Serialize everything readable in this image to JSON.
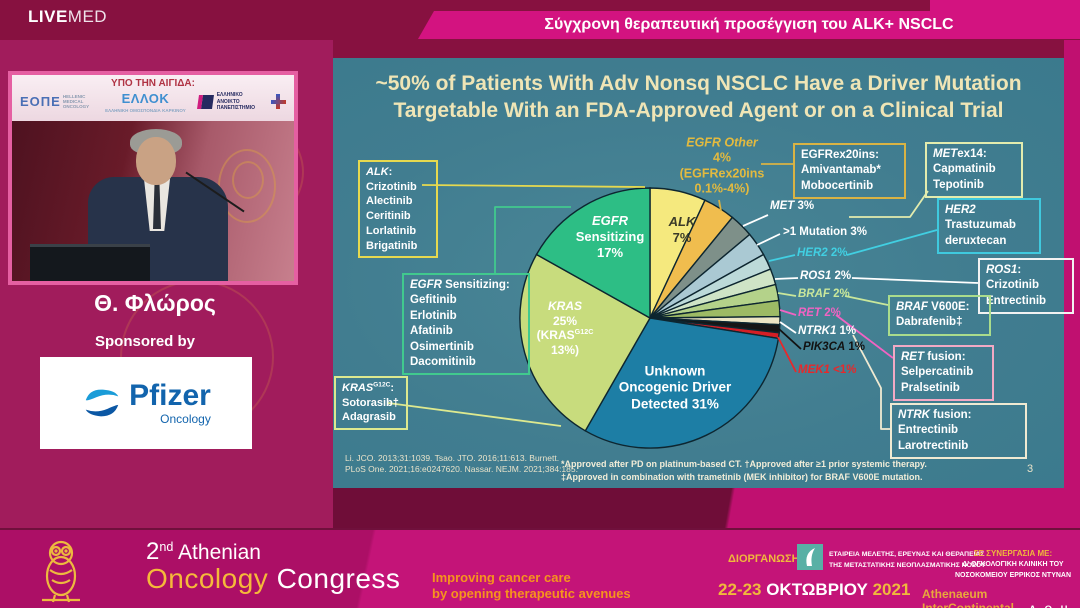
{
  "header": {
    "brand_bold": "LIVE",
    "brand_light": "MED",
    "session_title": "Σύγχρονη θεραπευτική προσέγγιση του ALK+ NSCLC"
  },
  "video": {
    "banner": "ΥΠΟ ΤΗΝ ΑΙΓΙΔΑ:",
    "org1": "ΕΟΠΕ",
    "org1_sub1": "HELLENIC",
    "org1_sub2": "MEDICAL",
    "org1_sub3": "ONCOLOGY",
    "org2": "ΕΛΛΟΚ",
    "org2_sub1": "ΕΛΛΗΝΙΚΗ",
    "org2_sub2": "ΟΜΟΣΠΟΝΔΙΑ",
    "org2_sub3": "ΚΑΡΚΙΝΟΥ",
    "org3_line1": "ΕΛΛΗΝΙΚΟ",
    "org3_line2": "ΑΝΟΙΚΤΟ",
    "org3_line3": "ΠΑΝΕΠΙΣΤΗΜΙΟ"
  },
  "speaker": {
    "name": "Θ. Φλώρος",
    "sponsored": "Sponsored by",
    "sponsor": "Pfizer",
    "sponsor_division": "Oncology"
  },
  "slide": {
    "title_line1": "~50% of Patients With Adv Nonsq NSCLC Have a Driver Mutation",
    "title_line2": "Targetable With an FDA-Approved Agent or on a Clinical Trial",
    "citations_line1": "Li. JCO. 2013;31:1039. Tsao. JTO. 2016;11:613. Burnett.",
    "citations_line2": "PLoS One. 2021;16:e0247620. Nassar. NEJM. 2021;384:185.",
    "footnote_line1": "*Approved after PD on platinum-based CT. †Approved after ≥1 prior systemic therapy.",
    "footnote_line2": "‡Approved in combination with trametinib (MEK inhibitor) for BRAF V600E mutation.",
    "page_number": "3",
    "boxes": [
      {
        "id": "alk",
        "gene": "ALK",
        "sup": "",
        "rest": ":",
        "drugs": [
          "Crizotinib",
          "Alectinib",
          "Ceritinib",
          "Lorlatinib",
          "Brigatinib"
        ],
        "border": "#e6d94f"
      },
      {
        "id": "egfr_sens",
        "gene": "EGFR",
        "sup": "",
        "rest": " Sensitizing:",
        "drugs": [
          "Gefitinib",
          "Erlotinib",
          "Afatinib",
          "Osimertinib",
          "Dacomitinib"
        ],
        "border": "#41c98e"
      },
      {
        "id": "kras",
        "gene": "KRAS",
        "sup": "G12C",
        "rest": ":",
        "drugs": [
          "Sotorasib†",
          "Adagrasib"
        ],
        "border": "#dde98f"
      },
      {
        "id": "egfrex20",
        "gene": "",
        "sup": "",
        "rest": "EGFRex20ins:",
        "drugs": [
          "Amivantamab*",
          "Mobocertinib"
        ],
        "border": "#d9b344"
      },
      {
        "id": "metex14",
        "gene": "MET",
        "sup": "",
        "rest": "ex14:",
        "drugs": [
          "Capmatinib",
          "Tepotinib"
        ],
        "border": "#e3ecae"
      },
      {
        "id": "her2",
        "gene": "HER2",
        "sup": "",
        "rest": "",
        "drugs": [
          "Trastuzumab deruxtecan"
        ],
        "border": "#3fc9de"
      },
      {
        "id": "ros1",
        "gene": "ROS1",
        "sup": "",
        "rest": ":",
        "drugs": [
          "Crizotinib",
          "Entrectinib"
        ],
        "border": "#f2f2f2"
      },
      {
        "id": "braf",
        "gene": "BRAF",
        "sup": "",
        "rest": " V600E:",
        "drugs": [
          "Dabrafenib‡"
        ],
        "border": "#aadc8c"
      },
      {
        "id": "ret",
        "gene": "RET",
        "sup": "",
        "rest": " fusion:",
        "drugs": [
          "Selpercatinib",
          "Pralsetinib"
        ],
        "border": "#f2a9c4"
      },
      {
        "id": "ntrk",
        "gene": "NTRK",
        "sup": "",
        "rest": " fusion:",
        "drugs": [
          "Entrectinib",
          "Larotrectinib"
        ],
        "border": "#f0ead2"
      }
    ]
  },
  "chart_data": {
    "type": "pie",
    "title": "~50% of Patients With Adv Nonsq NSCLC Have a Driver Mutation Targetable With an FDA-Approved Agent or on a Clinical Trial",
    "order_note": "slices listed clockwise starting at 12 o'clock",
    "slices": [
      {
        "label": "ALK",
        "pct": "7%",
        "value": 7,
        "color": "#f5e97e"
      },
      {
        "label": "EGFR Other (EGFRex20ins 0.1%-4%)",
        "pct": "4%",
        "value": 4,
        "color": "#f0bd4e"
      },
      {
        "label": "MET",
        "pct": "3%",
        "value": 3,
        "color": "#7e9089"
      },
      {
        "label": ">1 Mutation",
        "pct": "3%",
        "value": 3,
        "color": "#aac9d3"
      },
      {
        "label": "HER2",
        "pct": "2%",
        "value": 2,
        "color": "#bcdad9"
      },
      {
        "label": "ROS1",
        "pct": "2%",
        "value": 2,
        "color": "#cfe4c6"
      },
      {
        "label": "BRAF",
        "pct": "2%",
        "value": 2,
        "color": "#b4d28a"
      },
      {
        "label": "RET",
        "pct": "2%",
        "value": 2,
        "color": "#9dba65"
      },
      {
        "label": "NTRK1",
        "pct": "1%",
        "value": 1,
        "color": "#ece5c4"
      },
      {
        "label": "PIK3CA",
        "pct": "1%",
        "value": 1,
        "color": "#161616"
      },
      {
        "label": "MEK1",
        "pct": "<1%",
        "value": 0.7,
        "color": "#d41f26"
      },
      {
        "label": "Unknown Oncogenic Driver Detected",
        "pct": "31%",
        "value": 31,
        "color": "#1d7ea5"
      },
      {
        "label": "KRAS (KRASG12C 13%)",
        "pct": "25%",
        "value": 25,
        "color": "#c8dc7d"
      },
      {
        "label": "EGFR Sensitizing",
        "pct": "17%",
        "value": 17,
        "color": "#2dbe85"
      }
    ],
    "inner_labels": [
      {
        "id": "egfr_sens",
        "lines": [
          "EGFR",
          "Sensitizing",
          "17%"
        ],
        "color": "#ffffff",
        "size": 13
      },
      {
        "id": "alk",
        "lines": [
          "ALK",
          "7%"
        ],
        "color": "#3a3a28",
        "size": 13
      },
      {
        "id": "kras",
        "lines": [
          "KRAS",
          "25%",
          "(KRASG12C",
          "13%)"
        ],
        "color": "#ffffff",
        "size": 12
      },
      {
        "id": "unknown",
        "lines": [
          "Unknown",
          "Oncogenic Driver",
          "Detected 31%"
        ],
        "color": "#ffffff",
        "size": 13.5
      },
      {
        "id": "egfr_other",
        "lines": [
          "EGFR Other",
          "4%",
          "(EGFRex20ins",
          "0.1%-4%)"
        ],
        "color": "#e3ba3f",
        "size": 12.5
      }
    ],
    "callouts": [
      {
        "id": "met",
        "gene": "MET",
        "rest": " 3%",
        "color": "#ffffff"
      },
      {
        "id": "mut",
        "gene": "",
        "rest": ">1 Mutation 3%",
        "color": "#ffffff"
      },
      {
        "id": "her2",
        "gene": "HER2",
        "rest": " 2%",
        "color": "#41cfe2"
      },
      {
        "id": "ros1",
        "gene": "ROS1",
        "rest": " 2%",
        "color": "#ffffff"
      },
      {
        "id": "braf",
        "gene": "BRAF",
        "rest": " 2%",
        "color": "#c9e79b"
      },
      {
        "id": "ret",
        "gene": "RET",
        "rest": " 2%",
        "color": "#f263c3"
      },
      {
        "id": "ntrk1",
        "gene": "NTRK1",
        "rest": " 1%",
        "color": "#ffffff"
      },
      {
        "id": "pik3ca",
        "gene": "PIK3CA",
        "rest": " 1%",
        "color": "#121212"
      },
      {
        "id": "mek1",
        "gene": "MEK1",
        "rest": " <1%",
        "color": "#e8282a"
      }
    ]
  },
  "footer": {
    "congress_num": "2",
    "congress_sup": "nd",
    "congress_rest": " Athenian",
    "congress_word1": "Oncology",
    "congress_word2": " Congress",
    "tagline1": "Improving cancer care",
    "tagline2": "by opening therapeutic avenues",
    "organizer_label": "ΔΙΟΡΓΑΝΩΣΗ",
    "society1": "ΕΤΑΙΡΕΙΑ ΜΕΛΕΤΗΣ, ΕΡΕΥΝΑΣ ΚΑΙ ΘΕΡΑΠΕΙΑΣ",
    "society2": "ΤΗΣ ΜΕΤΑΣΤΑΤΙΚΗΣ ΝΕΟΠΛΑΣΜΑΤΙΚΗΣ ΝΟΣΟΥ",
    "partner_label": "ΣΕ ΣΥΝΕΡΓΑΣΙΑ ΜΕ:",
    "partner1": "Δ' ΟΓΚΟΛΟΓΙΚΗ ΚΛΙΝΙΚΗ ΤΟΥ",
    "partner2": "ΝΟΣΟΚΟΜΕΙΟΥ ΕΡΡΙΚΟΣ ΝΤΥΝΑΝ",
    "date_part1": "22-23",
    "date_part2": " ΟΚΤΩΒΡΙΟΥ ",
    "date_part3": "2021",
    "venue": "Athenaeum InterContinental ",
    "venue_city": "- Α Θ Η Ν Α"
  },
  "colors": {
    "accent_pink": "#d31380",
    "page_maroon": "#871140",
    "left_magenta": "#a11c5c",
    "slide_teal": "#417d90",
    "title_cream": "#efe5b6",
    "footer_pink": "#c41478",
    "gold": "#f0b83c",
    "orange": "#f6941d"
  }
}
